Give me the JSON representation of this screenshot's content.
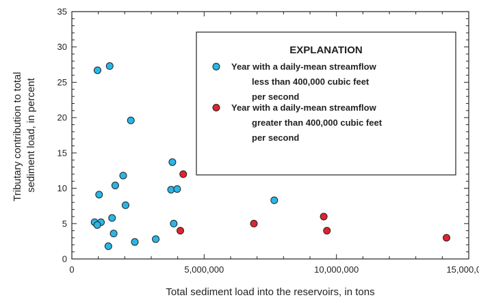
{
  "chart_data": {
    "type": "scatter",
    "xlabel": "Total sediment load into the reservoirs, in tons",
    "ylabel_lines": [
      "Tributary contribution to total",
      "sediment load, in percent"
    ],
    "xlim": [
      0,
      15000000
    ],
    "ylim": [
      0,
      35
    ],
    "x_ticks": [
      0,
      5000000,
      10000000,
      15000000
    ],
    "x_tick_labels": [
      "0",
      "5,000,000",
      "10,000,000",
      "15,000,000"
    ],
    "y_ticks": [
      0,
      5,
      10,
      15,
      20,
      25,
      30,
      35
    ],
    "y_tick_labels": [
      "0",
      "5",
      "10",
      "15",
      "20",
      "25",
      "30",
      "35"
    ],
    "grid": false,
    "legend": {
      "title": "EXPLANATION",
      "placement": "top-right",
      "entries": [
        {
          "lines": [
            "Year with a daily-mean streamflow",
            "less than 400,000 cubic feet",
            "per second"
          ]
        },
        {
          "lines": [
            "Year with a daily-mean streamflow",
            "greater than 400,000 cubic feet",
            "per second"
          ]
        }
      ]
    },
    "series": [
      {
        "color": "#29b6e6",
        "points": [
          [
            970000,
            26.7
          ],
          [
            1430000,
            27.3
          ],
          [
            2230000,
            19.6
          ],
          [
            3800000,
            13.7
          ],
          [
            1940000,
            11.8
          ],
          [
            1640000,
            10.4
          ],
          [
            3750000,
            9.8
          ],
          [
            3980000,
            9.9
          ],
          [
            1030000,
            9.1
          ],
          [
            7650000,
            8.3
          ],
          [
            2030000,
            7.6
          ],
          [
            1520000,
            5.8
          ],
          [
            860000,
            5.2
          ],
          [
            1100000,
            5.2
          ],
          [
            960000,
            4.8
          ],
          [
            3850000,
            5.0
          ],
          [
            1580000,
            3.6
          ],
          [
            3170000,
            2.8
          ],
          [
            2380000,
            2.4
          ],
          [
            1380000,
            1.8
          ]
        ]
      },
      {
        "color": "#e0242e",
        "points": [
          [
            4210000,
            12.0
          ],
          [
            6880000,
            5.0
          ],
          [
            9520000,
            6.0
          ],
          [
            9640000,
            4.0
          ],
          [
            4100000,
            4.0
          ],
          [
            14160000,
            3.0
          ]
        ]
      }
    ]
  }
}
